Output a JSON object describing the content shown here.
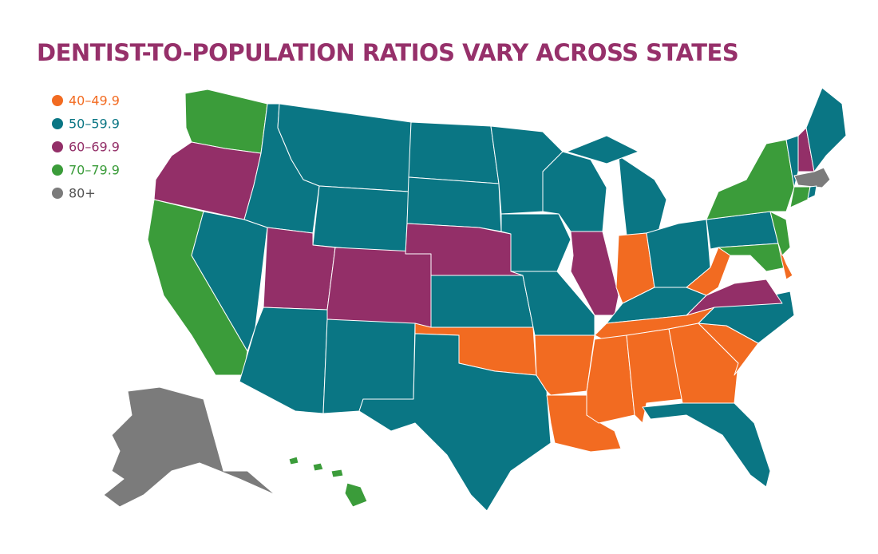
{
  "title": "DENTIST-TO-POPULATION RATIOS VARY ACROSS STATES",
  "legend": [
    {
      "label": "40–49.9",
      "color": "#f26b21"
    },
    {
      "label": "50–59.9",
      "color": "#0a7684"
    },
    {
      "label": "60–69.9",
      "color": "#932f68"
    },
    {
      "label": "70–79.9",
      "color": "#3b9c3a"
    },
    {
      "label": "80+",
      "color": "#7b7b7b"
    }
  ]
}
